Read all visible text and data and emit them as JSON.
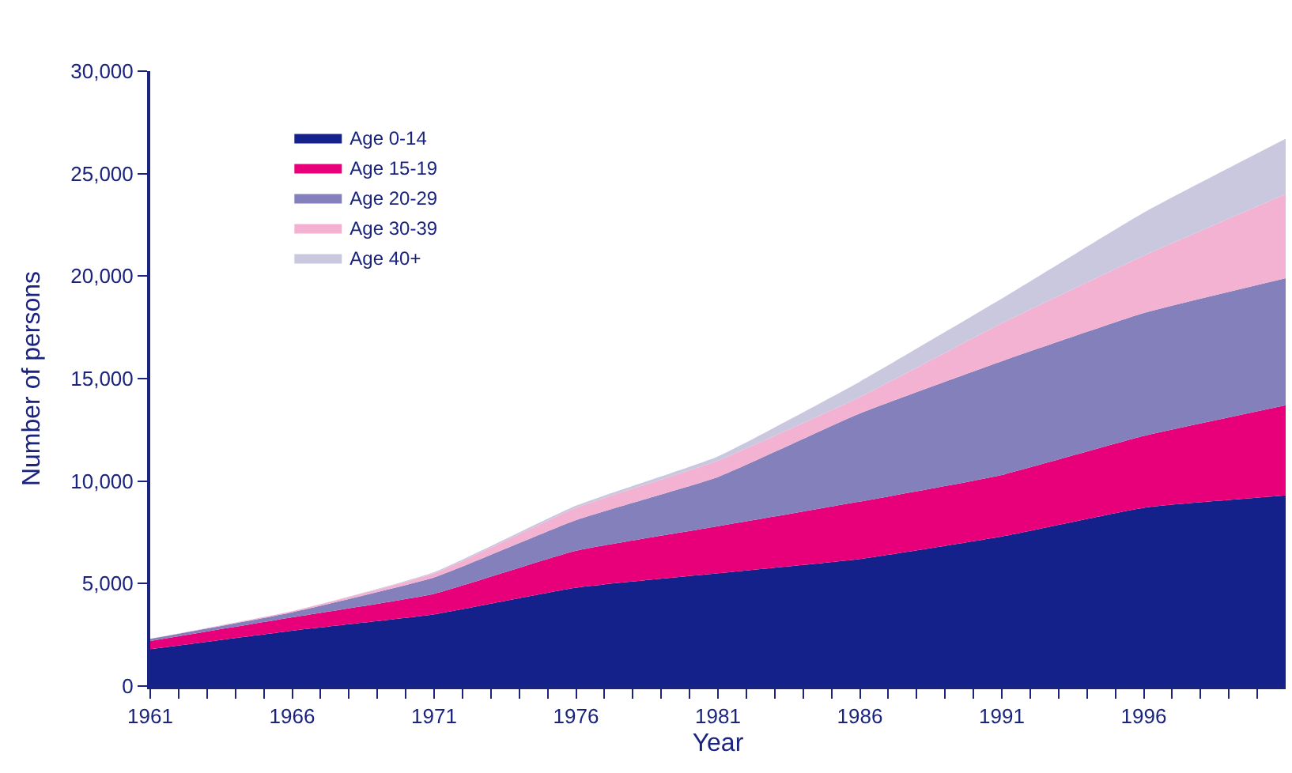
{
  "chart_data": {
    "type": "area",
    "stacked": true,
    "xlabel": "Year",
    "ylabel": "Number of persons",
    "x": [
      1961,
      1966,
      1971,
      1976,
      1981,
      1986,
      1991,
      1996,
      2001
    ],
    "series": [
      {
        "name": "Age 0-14",
        "color": "#14218a",
        "values": [
          1800,
          2700,
          3500,
          4800,
          5500,
          6200,
          7300,
          8700,
          9300
        ]
      },
      {
        "name": "Age 15-19",
        "color": "#e8007a",
        "values": [
          400,
          650,
          1000,
          1800,
          2300,
          2800,
          3000,
          3500,
          4400
        ]
      },
      {
        "name": "Age 20-29",
        "color": "#8480bb",
        "values": [
          100,
          250,
          800,
          1500,
          2400,
          4300,
          5550,
          6000,
          6200
        ]
      },
      {
        "name": "Age 30-39",
        "color": "#f4b2d2",
        "values": [
          0,
          50,
          200,
          600,
          800,
          800,
          1850,
          2800,
          4100
        ]
      },
      {
        "name": "Age 40+",
        "color": "#c9c8df",
        "values": [
          0,
          0,
          50,
          100,
          200,
          750,
          1200,
          2100,
          2700
        ]
      }
    ],
    "xlim": [
      1961,
      2001
    ],
    "xticks": [
      1961,
      {
        "value": 1962,
        "label": null
      },
      {
        "value": 1963,
        "label": null
      },
      {
        "value": 1964,
        "label": null
      },
      {
        "value": 1965,
        "label": null
      },
      1966,
      {
        "value": 1967,
        "label": null
      },
      {
        "value": 1968,
        "label": null
      },
      {
        "value": 1969,
        "label": null
      },
      {
        "value": 1970,
        "label": null
      },
      1971,
      {
        "value": 1972,
        "label": null
      },
      {
        "value": 1973,
        "label": null
      },
      {
        "value": 1974,
        "label": null
      },
      {
        "value": 1975,
        "label": null
      },
      1976,
      {
        "value": 1977,
        "label": null
      },
      {
        "value": 1978,
        "label": null
      },
      {
        "value": 1979,
        "label": null
      },
      {
        "value": 1980,
        "label": null
      },
      1981,
      {
        "value": 1982,
        "label": null
      },
      {
        "value": 1983,
        "label": null
      },
      {
        "value": 1984,
        "label": null
      },
      {
        "value": 1985,
        "label": null
      },
      1986,
      {
        "value": 1987,
        "label": null
      },
      {
        "value": 1988,
        "label": null
      },
      {
        "value": 1989,
        "label": null
      },
      {
        "value": 1990,
        "label": null
      },
      1991,
      {
        "value": 1992,
        "label": null
      },
      {
        "value": 1993,
        "label": null
      },
      {
        "value": 1994,
        "label": null
      },
      {
        "value": 1995,
        "label": null
      },
      1996,
      {
        "value": 1997,
        "label": null
      },
      {
        "value": 1998,
        "label": null
      },
      {
        "value": 1999,
        "label": null
      },
      {
        "value": 2000,
        "label": null
      }
    ],
    "ylim": [
      0,
      30000
    ],
    "yticks": [
      0,
      {
        "value": 5000,
        "label": "5,000"
      },
      {
        "value": 10000,
        "label": "10,000"
      },
      {
        "value": 15000,
        "label": "15,000"
      },
      {
        "value": 20000,
        "label": "20,000"
      },
      {
        "value": 25000,
        "label": "25,000"
      },
      {
        "value": 30000,
        "label": "30,000"
      }
    ],
    "legend": "top left"
  }
}
